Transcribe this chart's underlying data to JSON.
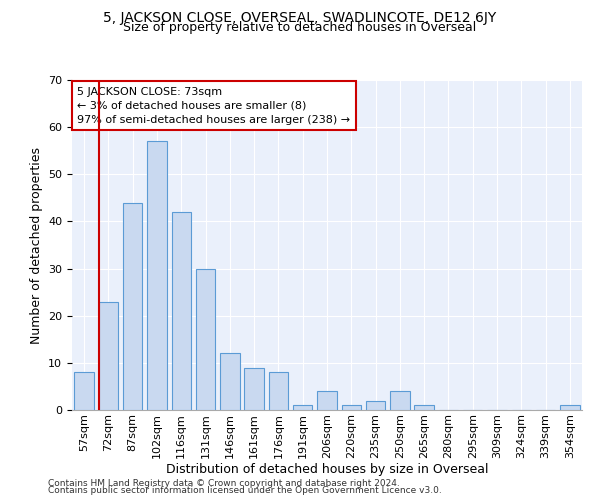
{
  "title1": "5, JACKSON CLOSE, OVERSEAL, SWADLINCOTE, DE12 6JY",
  "title2": "Size of property relative to detached houses in Overseal",
  "xlabel": "Distribution of detached houses by size in Overseal",
  "ylabel": "Number of detached properties",
  "categories": [
    "57sqm",
    "72sqm",
    "87sqm",
    "102sqm",
    "116sqm",
    "131sqm",
    "146sqm",
    "161sqm",
    "176sqm",
    "191sqm",
    "206sqm",
    "220sqm",
    "235sqm",
    "250sqm",
    "265sqm",
    "280sqm",
    "295sqm",
    "309sqm",
    "324sqm",
    "339sqm",
    "354sqm"
  ],
  "values": [
    8,
    23,
    44,
    57,
    42,
    30,
    12,
    9,
    8,
    1,
    4,
    1,
    2,
    4,
    1,
    0,
    0,
    0,
    0,
    0,
    1
  ],
  "bar_color": "#c9d9f0",
  "bar_edge_color": "#5b9bd5",
  "annotation_text": "5 JACKSON CLOSE: 73sqm\n← 3% of detached houses are smaller (8)\n97% of semi-detached houses are larger (238) →",
  "footer1": "Contains HM Land Registry data © Crown copyright and database right 2024.",
  "footer2": "Contains public sector information licensed under the Open Government Licence v3.0.",
  "ylim": [
    0,
    70
  ],
  "yticks": [
    0,
    10,
    20,
    30,
    40,
    50,
    60,
    70
  ],
  "vline_color": "#cc0000",
  "vline_x_index": 1,
  "annotation_box_facecolor": "#ffffff",
  "annotation_box_edgecolor": "#cc0000",
  "bg_color": "#eaf0fb",
  "title1_fontsize": 10,
  "title2_fontsize": 9,
  "ylabel_fontsize": 9,
  "xlabel_fontsize": 9,
  "tick_fontsize": 8,
  "annotation_fontsize": 8,
  "footer_fontsize": 6.5
}
